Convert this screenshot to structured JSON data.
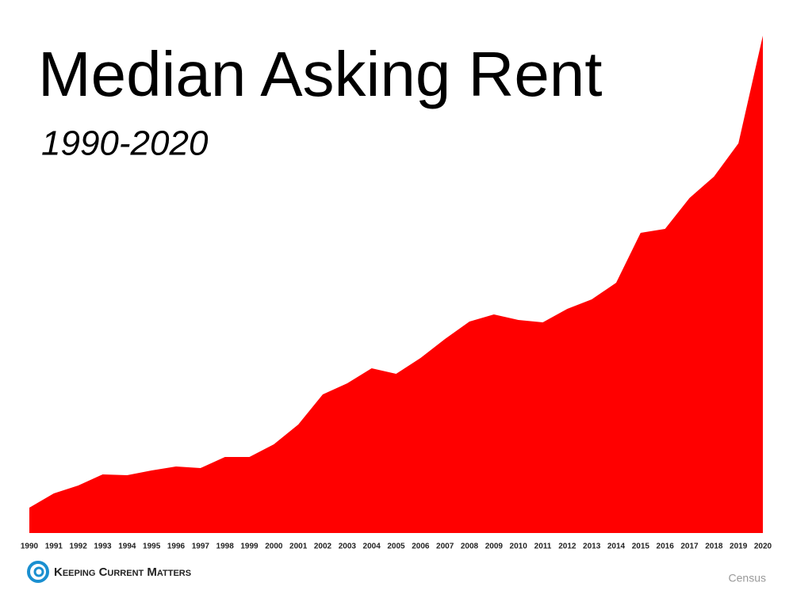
{
  "chart_data": {
    "type": "area",
    "title": "Median Asking Rent",
    "subtitle": "1990-2020",
    "source": "Census",
    "brand": "Keeping Current Matters",
    "color": "#ff0000",
    "x": [
      1990,
      1991,
      1992,
      1993,
      1994,
      1995,
      1996,
      1997,
      1998,
      1999,
      2000,
      2001,
      2002,
      2003,
      2004,
      2005,
      2006,
      2007,
      2008,
      2009,
      2010,
      2011,
      2012,
      2013,
      2014,
      2015,
      2016,
      2017,
      2018,
      2019,
      2020
    ],
    "values": [
      32,
      50,
      60,
      74,
      73,
      79,
      84,
      82,
      96,
      96,
      112,
      137,
      175,
      189,
      208,
      201,
      221,
      245,
      267,
      276,
      269,
      266,
      283,
      295,
      316,
      379,
      384,
      423,
      450,
      492,
      628
    ],
    "xlim": [
      1990,
      2020
    ],
    "xticks": [
      1990,
      1991,
      1992,
      1993,
      1994,
      1995,
      1996,
      1997,
      1998,
      1999,
      2000,
      2001,
      2002,
      2003,
      2004,
      2005,
      2006,
      2007,
      2008,
      2009,
      2010,
      2011,
      2012,
      2013,
      2014,
      2015,
      2016,
      2017,
      2018,
      2019,
      2020
    ],
    "ylim": [
      0,
      628
    ]
  }
}
